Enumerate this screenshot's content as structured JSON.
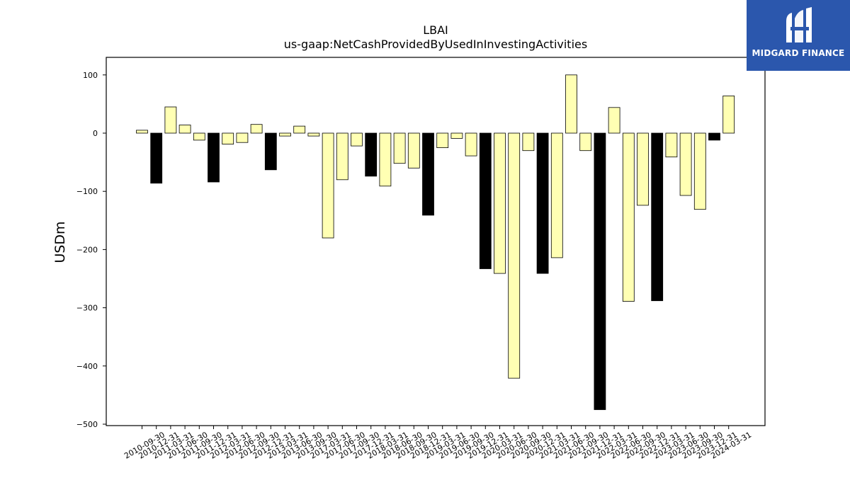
{
  "logo": {
    "text": "MIDGARD FINANCE",
    "icon": "midgard-logo-icon",
    "color": "#2b57ad"
  },
  "chart_data": {
    "type": "bar",
    "title": "LBAI",
    "subtitle": "us-gaap:NetCashProvidedByUsedInInvestingActivities",
    "ylabel": "USDm",
    "xlabel": "",
    "ylim": [
      -500,
      130
    ],
    "yticks": [
      100,
      0,
      -100,
      -200,
      -300,
      -400,
      -500
    ],
    "ytick_labels": [
      "100",
      "0",
      "−100",
      "−200",
      "−300",
      "−400",
      "−500"
    ],
    "grid": false,
    "legend": "none",
    "colors": {
      "annual": "#000000",
      "quarterly": "#ffffb3",
      "edge": "#000000"
    },
    "categories": [
      "2010-09-30",
      "2010-12-31",
      "2011-03-31",
      "2011-06-30",
      "2011-09-30",
      "2011-12-31",
      "2012-03-31",
      "2012-06-30",
      "2012-09-30",
      "2012-12-31",
      "2013-03-31",
      "2013-06-30",
      "2013-09-30",
      "2017-03-31",
      "2017-06-30",
      "2017-09-30",
      "2017-12-31",
      "2018-03-31",
      "2018-06-30",
      "2018-09-30",
      "2018-12-31",
      "2019-03-31",
      "2019-06-30",
      "2019-09-30",
      "2019-12-31",
      "2020-03-31",
      "2020-06-30",
      "2020-09-30",
      "2020-12-31",
      "2021-03-31",
      "2021-06-30",
      "2021-09-30",
      "2021-12-31",
      "2022-03-31",
      "2022-06-30",
      "2022-09-30",
      "2022-12-31",
      "2023-03-31",
      "2023-06-30",
      "2023-09-30",
      "2023-12-31",
      "2024-03-31"
    ],
    "values": [
      5,
      -86,
      45,
      14,
      -12,
      -84,
      -19,
      -16,
      15,
      -63,
      -5,
      12,
      -5,
      -180,
      -80,
      -22,
      -74,
      -91,
      -52,
      -60,
      -141,
      -25,
      -9,
      -39,
      -233,
      -241,
      -421,
      -30,
      -241,
      -214,
      100,
      -30,
      -475,
      44,
      -289,
      -124,
      -288,
      -41,
      -107,
      -131,
      -12,
      64
    ],
    "annual_flags": [
      false,
      true,
      false,
      false,
      false,
      true,
      false,
      false,
      false,
      true,
      false,
      false,
      false,
      false,
      false,
      false,
      true,
      false,
      false,
      false,
      true,
      false,
      false,
      false,
      true,
      false,
      false,
      false,
      true,
      false,
      false,
      false,
      true,
      false,
      false,
      false,
      true,
      false,
      false,
      false,
      true,
      false
    ]
  }
}
